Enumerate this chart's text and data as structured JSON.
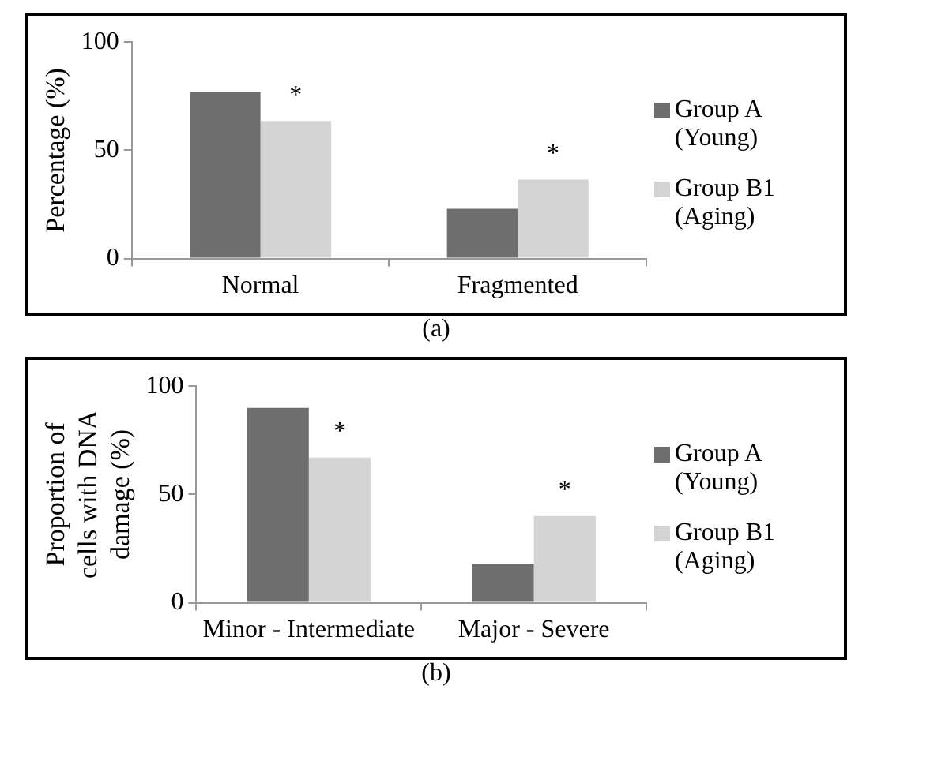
{
  "chart_data": [
    {
      "type": "bar",
      "ylabel": "Percentage (%)",
      "categories": [
        "Normal",
        "Fragmented"
      ],
      "series": [
        {
          "name": "Group A (Young)",
          "color": "#6e6e6e",
          "values": [
            77,
            23
          ]
        },
        {
          "name": "Group B1 (Aging)",
          "color": "#d4d4d4",
          "values": [
            63.5,
            36.5
          ]
        }
      ],
      "ylim": [
        0,
        100
      ],
      "yticks": [
        0,
        50,
        100
      ],
      "grid": false,
      "legend": "right",
      "annotations": [
        {
          "text": "*",
          "x": "Normal",
          "y": 63.5
        },
        {
          "text": "*",
          "x": "Fragmented",
          "y": 36.5
        },
        "(a)"
      ]
    },
    {
      "type": "bar",
      "ylabel": "Proportion of cells with DNA damage (%)",
      "categories": [
        "Minor - Intermediate",
        "Major - Severe"
      ],
      "series": [
        {
          "name": "Group A (Young)",
          "color": "#6e6e6e",
          "values": [
            90,
            18
          ]
        },
        {
          "name": "Group B1 (Aging)",
          "color": "#d4d4d4",
          "values": [
            67,
            40
          ]
        }
      ],
      "ylim": [
        0,
        100
      ],
      "yticks": [
        0,
        50,
        100
      ],
      "grid": false,
      "legend": "right",
      "annotations": [
        {
          "text": "*",
          "x": "Minor - Intermediate",
          "y": 67
        },
        {
          "text": "*",
          "x": "Major - Severe",
          "y": 40
        },
        "(b)"
      ]
    }
  ]
}
